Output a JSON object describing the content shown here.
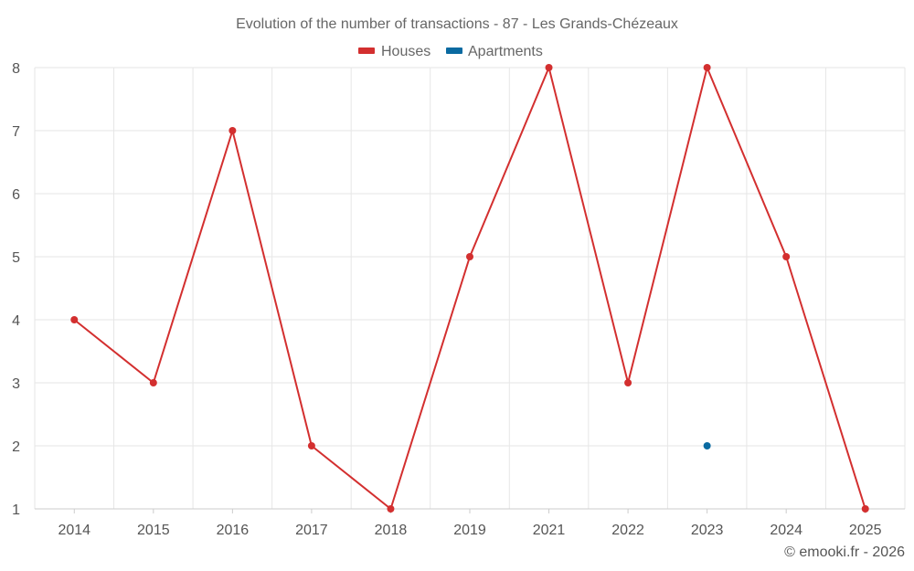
{
  "chart_data": {
    "type": "line",
    "title": "Evolution of the number of transactions - 87 - Les Grands-Chézeaux",
    "xlabel": "",
    "ylabel": "",
    "categories": [
      "2014",
      "2015",
      "2016",
      "2017",
      "2018",
      "2019",
      "2021",
      "2022",
      "2023",
      "2024",
      "2025"
    ],
    "ylim": [
      1,
      8
    ],
    "yticks": [
      "1",
      "2",
      "3",
      "4",
      "5",
      "6",
      "7",
      "8"
    ],
    "grid": true,
    "legend_position": "top-center",
    "series": [
      {
        "name": "Houses",
        "color": "#d32f2f",
        "values": [
          4,
          3,
          7,
          2,
          1,
          5,
          8,
          3,
          8,
          5,
          1
        ]
      },
      {
        "name": "Apartments",
        "color": "#0a6aa1",
        "values": [
          null,
          null,
          null,
          null,
          null,
          null,
          null,
          null,
          2,
          null,
          null
        ]
      }
    ]
  },
  "credit": "© emooki.fr - 2026"
}
